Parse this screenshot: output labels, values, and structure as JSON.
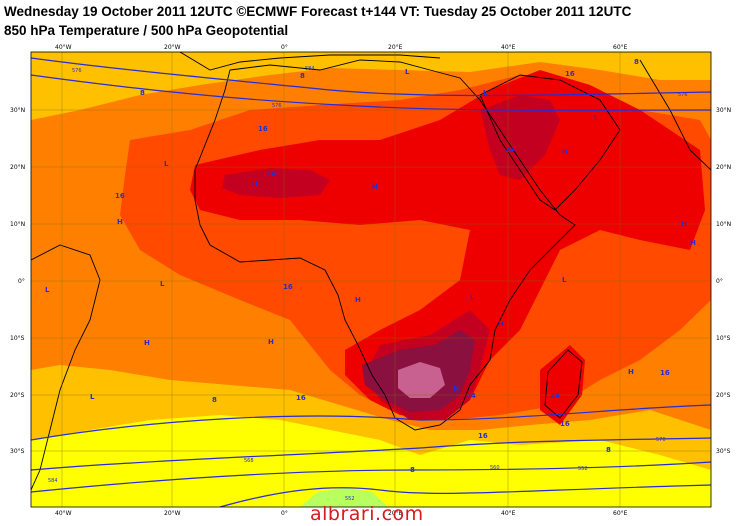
{
  "header": {
    "title_line1": "Wednesday 19 October 2011 12UTC ©ECMWF Forecast t+144 VT: Tuesday 25 October 2011 12UTC",
    "title_line2": "850 hPa Temperature / 500 hPa Geopotential"
  },
  "map": {
    "lon_labels": [
      "40°W",
      "20°W",
      "0°",
      "20°E",
      "40°E",
      "60°E"
    ],
    "lat_labels_left": [
      "30°N",
      "20°N",
      "10°N",
      "0°",
      "10°S",
      "20°S",
      "30°S"
    ],
    "lat_labels_right": [
      "30°N",
      "20°N",
      "10°N",
      "0°",
      "10°S",
      "20°S",
      "30°S"
    ],
    "contour_labels": [
      "576",
      "584",
      "576",
      "576",
      "576",
      "584",
      "552",
      "560",
      "552",
      "568"
    ],
    "temperature_labels": [
      "8",
      "8",
      "8",
      "16",
      "16",
      "16",
      "16",
      "24",
      "24",
      "16",
      "16",
      "8",
      "8",
      "16",
      "24",
      "24",
      "16",
      "8"
    ],
    "pressure_marks_h": [
      "H",
      "H",
      "H",
      "H",
      "H",
      "H",
      "H",
      "H",
      "H",
      "H",
      "H",
      "H"
    ],
    "pressure_marks_l": [
      "L",
      "L",
      "L",
      "L",
      "L",
      "L",
      "L",
      "L",
      "L"
    ],
    "colors": {
      "yellow": "#ffff00",
      "light_orange": "#ffc000",
      "orange": "#ff8000",
      "dark_orange": "#ff4a00",
      "red": "#ee0000",
      "dark_red": "#c40020",
      "maroon": "#8a1040",
      "pink": "#c86090",
      "green": "#b8ff60",
      "contour_blue": "#2b2bd0",
      "coast": "#000000"
    }
  },
  "watermark": "albrari.com"
}
